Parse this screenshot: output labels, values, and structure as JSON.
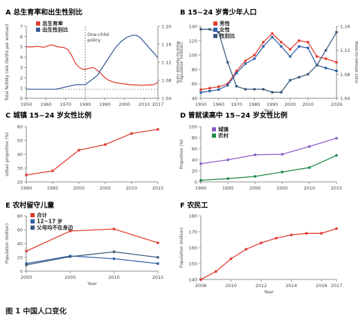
{
  "figure_caption": "图 1 中国人口变化",
  "chart_data": [
    {
      "type": "line",
      "panel": "A",
      "title": "总生育率和出生性别比",
      "xlabel": "",
      "ylabel": "Total fertility rate (births per woman)",
      "ylabel_right": "Male-to-female ratio",
      "xlim": [
        1950,
        2017
      ],
      "ylim": [
        0,
        7
      ],
      "ylim_right": [
        1.04,
        1.2
      ],
      "xticks": [
        "1950",
        "1960",
        "1970",
        "1980",
        "1990",
        "2000",
        "2010",
        "2017"
      ],
      "yticks": [
        "0",
        "1",
        "2",
        "3",
        "4",
        "5",
        "6",
        "7"
      ],
      "yticks_right": [
        "1.04",
        "1.08",
        "1.12",
        "1.16",
        "1.20"
      ],
      "annotation": "One-child policy",
      "annotation_x": 1980,
      "reference_y_right": 1.06,
      "series": [
        {
          "name": "总生育率",
          "color": "#e03a2e",
          "axis": "left",
          "x": [
            1950,
            1953,
            1956,
            1959,
            1961,
            1963,
            1966,
            1969,
            1971,
            1973,
            1975,
            1977,
            1979,
            1980,
            1982,
            1984,
            1986,
            1988,
            1990,
            1992,
            1994,
            1996,
            1998,
            2000,
            2003,
            2006,
            2009,
            2012,
            2014,
            2016,
            2017
          ],
          "y": [
            5.0,
            5.0,
            5.05,
            4.95,
            5.1,
            5.2,
            5.0,
            4.95,
            4.75,
            4.2,
            3.4,
            3.0,
            2.8,
            2.8,
            2.9,
            3.0,
            2.75,
            2.4,
            2.0,
            1.75,
            1.6,
            1.5,
            1.45,
            1.4,
            1.3,
            1.3,
            1.25,
            1.3,
            1.3,
            1.4,
            1.6
          ]
        },
        {
          "name": "出生性别比",
          "color": "#3a5a99",
          "axis": "right",
          "x": [
            1950,
            1955,
            1960,
            1965,
            1970,
            1975,
            1980,
            1983,
            1986,
            1989,
            1992,
            1995,
            1998,
            2001,
            2004,
            2006,
            2008,
            2010,
            2012,
            2014,
            2016,
            2017
          ],
          "y": [
            1.06,
            1.06,
            1.06,
            1.06,
            1.065,
            1.07,
            1.07,
            1.08,
            1.09,
            1.11,
            1.13,
            1.15,
            1.165,
            1.175,
            1.18,
            1.18,
            1.175,
            1.165,
            1.155,
            1.145,
            1.135,
            1.13
          ]
        }
      ]
    },
    {
      "type": "line",
      "panel": "B",
      "title": "15~24 岁青少年人口",
      "xlabel": "Year",
      "ylabel": "Population (million)",
      "ylabel_right": "Male-to-female ratio",
      "xlim": [
        1950,
        2026
      ],
      "ylim": [
        40,
        140
      ],
      "ylim_right": [
        1.04,
        1.16
      ],
      "xticks": [
        "1950",
        "1960",
        "1970",
        "1980",
        "1990",
        "2000",
        "2010",
        "2026"
      ],
      "yticks": [
        "40",
        "60",
        "80",
        "100",
        "120",
        "140"
      ],
      "yticks_right": [
        "1.04",
        "1.08",
        "1.12",
        "1.16"
      ],
      "series": [
        {
          "name": "男性",
          "color": "#e03a2e",
          "axis": "left",
          "x": [
            1950,
            1955,
            1960,
            1965,
            1970,
            1975,
            1980,
            1985,
            1990,
            1995,
            2000,
            2005,
            2010,
            2015,
            2020,
            2026
          ],
          "y": [
            52,
            54,
            56,
            60,
            78,
            92,
            100,
            118,
            130,
            118,
            108,
            120,
            118,
            98,
            95,
            90
          ]
        },
        {
          "name": "女性",
          "color": "#2e5fa8",
          "axis": "left",
          "x": [
            1950,
            1955,
            1960,
            1965,
            1970,
            1975,
            1980,
            1985,
            1990,
            1995,
            2000,
            2005,
            2010,
            2015,
            2020,
            2026
          ],
          "y": [
            48,
            50,
            52,
            58,
            75,
            88,
            95,
            112,
            125,
            112,
            98,
            112,
            110,
            86,
            82,
            78
          ]
        },
        {
          "name": "性别比",
          "color": "#3a5a7a",
          "axis": "right",
          "x": [
            1950,
            1955,
            1960,
            1965,
            1970,
            1975,
            1980,
            1985,
            1990,
            1995,
            2000,
            2005,
            2010,
            2015,
            2020,
            2026
          ],
          "y": [
            1.155,
            1.155,
            1.15,
            1.1,
            1.06,
            1.055,
            1.055,
            1.055,
            1.05,
            1.05,
            1.07,
            1.075,
            1.08,
            1.095,
            1.12,
            1.15
          ]
        }
      ]
    },
    {
      "type": "line",
      "panel": "C",
      "title": "城镇 15~24 岁女性比例",
      "xlabel": "",
      "ylabel": "Urban proportion (%)",
      "xlim": [
        1990,
        2015
      ],
      "ylim": [
        20,
        60
      ],
      "xticks": [
        "1990",
        "1995",
        "2000",
        "2005",
        "2010",
        "2015"
      ],
      "yticks": [
        "20",
        "30",
        "40",
        "50",
        "60"
      ],
      "series": [
        {
          "name": "",
          "color": "#e03a2e",
          "x": [
            1990,
            1995,
            2000,
            2005,
            2010,
            2015
          ],
          "y": [
            25,
            28,
            43,
            47,
            55,
            58
          ]
        }
      ]
    },
    {
      "type": "line",
      "panel": "D",
      "title": "曾就读高中 15~24 岁女性比例",
      "xlabel": "",
      "ylabel": "Proportion (%)",
      "xlim": [
        1990,
        2015
      ],
      "ylim": [
        0,
        100
      ],
      "xticks": [
        "1990",
        "1995",
        "2000",
        "2005",
        "2010",
        "2015"
      ],
      "yticks": [
        "0",
        "20",
        "40",
        "60",
        "80",
        "100"
      ],
      "series": [
        {
          "name": "城镇",
          "color": "#8a5cc7",
          "x": [
            1990,
            1995,
            2000,
            2005,
            2010,
            2015
          ],
          "y": [
            33,
            40,
            49,
            50,
            64,
            79
          ]
        },
        {
          "name": "农村",
          "color": "#1e8a4a",
          "x": [
            1990,
            1995,
            2000,
            2005,
            2010,
            2015
          ],
          "y": [
            3,
            6,
            10,
            18,
            26,
            48
          ]
        }
      ]
    },
    {
      "type": "line",
      "panel": "E",
      "title": "农村留守儿童",
      "xlabel": "Year",
      "ylabel": "Population (million)",
      "xlim": [
        2000,
        2015
      ],
      "ylim": [
        0,
        80
      ],
      "xticks": [
        "2000",
        "2005",
        "2010",
        "2015"
      ],
      "yticks": [
        "0",
        "20",
        "40",
        "60",
        "80"
      ],
      "series": [
        {
          "name": "合计",
          "color": "#e03a2e",
          "x": [
            2000,
            2005,
            2010,
            2015
          ],
          "y": [
            29,
            58,
            61,
            41
          ]
        },
        {
          "name": "12~17 岁",
          "color": "#2e5fa8",
          "x": [
            2000,
            2005,
            2010,
            2015
          ],
          "y": [
            11,
            22,
            18,
            11
          ]
        },
        {
          "name": "父母均不在身边",
          "color": "#3a5a7a",
          "x": [
            2000,
            2005,
            2010,
            2015
          ],
          "y": [
            9,
            21,
            28,
            20
          ]
        }
      ]
    },
    {
      "type": "line",
      "panel": "F",
      "title": "农民工",
      "xlabel": "Year",
      "ylabel": "Population (million)",
      "xlim": [
        2008,
        2017
      ],
      "ylim": [
        140,
        180
      ],
      "xticks": [
        "2008",
        "2010",
        "2012",
        "2014",
        "2016",
        "2017"
      ],
      "yticks": [
        "140",
        "150",
        "160",
        "170",
        "180"
      ],
      "series": [
        {
          "name": "",
          "color": "#e03a2e",
          "x": [
            2008,
            2009,
            2010,
            2011,
            2012,
            2013,
            2014,
            2015,
            2016,
            2017
          ],
          "y": [
            140,
            145,
            153,
            159,
            163,
            166,
            168,
            169,
            169,
            172
          ]
        }
      ]
    }
  ]
}
